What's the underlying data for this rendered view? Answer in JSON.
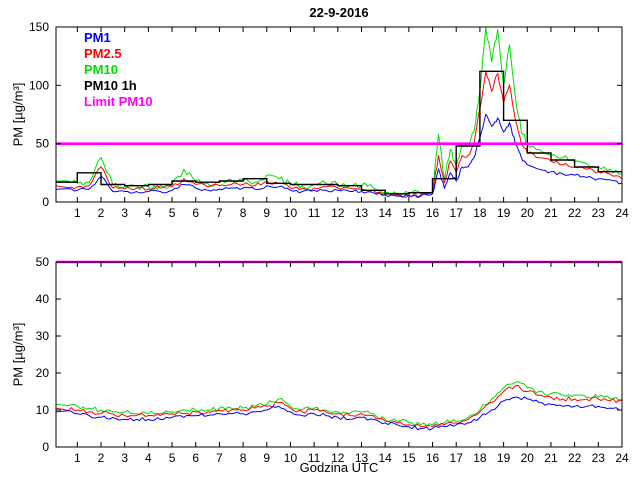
{
  "title": "22-9-2016",
  "xlabel": "Godzina UTC",
  "ylabel": "PM [µg/m³]",
  "legend": [
    {
      "label": "PM1",
      "color": "#0000ff"
    },
    {
      "label": "PM2.5",
      "color": "#ff0000"
    },
    {
      "label": "PM10",
      "color": "#00dd00"
    },
    {
      "label": "PM10 1h",
      "color": "#000000"
    },
    {
      "label": "Limit PM10",
      "color": "#ff00ff"
    }
  ],
  "chart_data": [
    {
      "type": "line",
      "title": "22-9-2016",
      "xlabel": "",
      "ylabel": "PM [µg/m³]",
      "xlim": [
        0.1,
        24
      ],
      "ylim": [
        0,
        150
      ],
      "xticks": [
        1,
        2,
        3,
        4,
        5,
        6,
        7,
        8,
        9,
        10,
        11,
        12,
        13,
        14,
        15,
        16,
        17,
        18,
        19,
        20,
        21,
        22,
        23,
        24
      ],
      "yticks": [
        0,
        50,
        100,
        150
      ],
      "grid": false,
      "legend_position": "top-left",
      "legend_entries": [
        "PM1",
        "PM2.5",
        "PM10",
        "PM10 1h",
        "Limit PM10"
      ],
      "limit_line": {
        "label": "Limit PM10",
        "y": 50,
        "color": "#ff00ff"
      },
      "x": [
        0.5,
        1,
        1.5,
        2,
        2.5,
        3,
        3.5,
        4,
        4.5,
        5,
        5.5,
        6,
        6.5,
        7,
        7.5,
        8,
        8.5,
        9,
        9.5,
        10,
        10.5,
        11,
        11.5,
        12,
        12.5,
        13,
        13.5,
        14,
        14.5,
        15,
        15.5,
        16,
        16.25,
        16.5,
        16.75,
        17,
        17.25,
        17.5,
        17.75,
        18,
        18.25,
        18.5,
        18.75,
        19,
        19.25,
        19.5,
        19.75,
        20,
        20.5,
        21,
        21.5,
        22,
        22.5,
        23,
        23.5,
        24
      ],
      "series": [
        {
          "name": "PM10",
          "color": "#00dd00",
          "noise": 3,
          "values": [
            18,
            16,
            17,
            38,
            15,
            13,
            14,
            13,
            14,
            15,
            28,
            18,
            16,
            17,
            19,
            18,
            17,
            23,
            20,
            15,
            14,
            15,
            16,
            15,
            14,
            14,
            12,
            8,
            7,
            7,
            7,
            9,
            58,
            20,
            45,
            30,
            50,
            48,
            60,
            95,
            150,
            120,
            148,
            100,
            135,
            90,
            60,
            50,
            45,
            40,
            38,
            35,
            33,
            30,
            28,
            24
          ]
        },
        {
          "name": "PM2.5",
          "color": "#ff0000",
          "noise": 2,
          "values": [
            14,
            13,
            14,
            30,
            12,
            11,
            12,
            11,
            12,
            13,
            20,
            15,
            13,
            14,
            15,
            15,
            14,
            18,
            16,
            12,
            12,
            12,
            13,
            12,
            12,
            11,
            10,
            7,
            6,
            6,
            6,
            8,
            40,
            16,
            35,
            25,
            40,
            40,
            50,
            80,
            112,
            95,
            110,
            85,
            100,
            70,
            50,
            42,
            38,
            35,
            32,
            30,
            28,
            26,
            24,
            20
          ]
        },
        {
          "name": "PM1",
          "color": "#0000ff",
          "noise": 1.5,
          "values": [
            11,
            10,
            11,
            22,
            9,
            9,
            9,
            9,
            9,
            10,
            15,
            12,
            10,
            11,
            12,
            12,
            11,
            14,
            13,
            10,
            9,
            10,
            10,
            10,
            9,
            9,
            8,
            6,
            5,
            5,
            5,
            7,
            28,
            12,
            25,
            18,
            30,
            30,
            38,
            55,
            75,
            65,
            72,
            60,
            68,
            50,
            38,
            32,
            28,
            26,
            24,
            23,
            21,
            20,
            19,
            16
          ]
        }
      ],
      "step_series": {
        "name": "PM10 1h",
        "color": "#000000",
        "hours": [
          1,
          2,
          3,
          4,
          5,
          6,
          7,
          8,
          9,
          10,
          11,
          12,
          13,
          14,
          15,
          16,
          17,
          18,
          19,
          20,
          21,
          22,
          23,
          24
        ],
        "values": [
          17,
          25,
          15,
          14,
          15,
          18,
          17,
          18,
          20,
          16,
          15,
          15,
          14,
          10,
          7,
          8,
          20,
          48,
          112,
          70,
          42,
          36,
          30,
          26
        ]
      }
    },
    {
      "type": "line",
      "title": "",
      "xlabel": "Godzina UTC",
      "ylabel": "PM [µg/m³]",
      "xlim": [
        0.1,
        24
      ],
      "ylim": [
        0,
        50
      ],
      "xticks": [
        1,
        2,
        3,
        4,
        5,
        6,
        7,
        8,
        9,
        10,
        11,
        12,
        13,
        14,
        15,
        16,
        17,
        18,
        19,
        20,
        21,
        22,
        23,
        24
      ],
      "yticks": [
        0,
        10,
        20,
        30,
        40,
        50
      ],
      "grid": false,
      "legend_position": "none",
      "limit_line": {
        "label": "Limit PM10",
        "y": 50,
        "color": "#ff00ff"
      },
      "x": [
        0.5,
        1,
        1.5,
        2,
        2.5,
        3,
        3.5,
        4,
        4.5,
        5,
        5.5,
        6,
        6.5,
        7,
        7.5,
        8,
        8.5,
        9,
        9.5,
        10,
        10.5,
        11,
        11.5,
        12,
        12.5,
        13,
        13.5,
        14,
        14.5,
        15,
        15.5,
        16,
        16.5,
        17,
        17.5,
        18,
        18.5,
        19,
        19.5,
        20,
        20.5,
        21,
        21.5,
        22,
        22.5,
        23,
        23.5,
        24
      ],
      "series": [
        {
          "name": "PM10",
          "color": "#00dd00",
          "noise": 0.7,
          "values": [
            11.5,
            11,
            10.5,
            10,
            9.5,
            9.5,
            9,
            9,
            9,
            9.5,
            10,
            10,
            10,
            10.5,
            10.5,
            10.5,
            11,
            11.5,
            13,
            11,
            10,
            10.5,
            10,
            9.5,
            9,
            9.5,
            9,
            7.5,
            7,
            6.5,
            6,
            6,
            6.5,
            7,
            8,
            10,
            13,
            16,
            17.5,
            16,
            15,
            14.5,
            14,
            14,
            13.5,
            13.5,
            13,
            13
          ]
        },
        {
          "name": "PM2.5",
          "color": "#ff0000",
          "noise": 0.6,
          "values": [
            10.5,
            10,
            9.5,
            9,
            9,
            8.5,
            8.5,
            8.5,
            8.5,
            9,
            9,
            9.5,
            9.5,
            10,
            10,
            10,
            10.5,
            11,
            12,
            10.5,
            9.5,
            10,
            9.5,
            9,
            8.5,
            9,
            8.5,
            7,
            6.5,
            6,
            5.5,
            5.5,
            6,
            6.5,
            7.5,
            9.5,
            12,
            15,
            16.5,
            15,
            14,
            13.5,
            13,
            13,
            13,
            13,
            12.5,
            12.5
          ]
        },
        {
          "name": "PM1",
          "color": "#0000ff",
          "noise": 0.5,
          "values": [
            9.5,
            9,
            8.5,
            8,
            8,
            7.5,
            7.5,
            7.5,
            7.5,
            8,
            8,
            8.5,
            8.5,
            9,
            9,
            9,
            9.5,
            10,
            11,
            9.5,
            8.5,
            9,
            8.5,
            8,
            7.5,
            8,
            7.5,
            6.5,
            6,
            5.5,
            5,
            5,
            5.5,
            6,
            6.5,
            8,
            10,
            12.5,
            13.5,
            13,
            12,
            11.5,
            11,
            11,
            11,
            11,
            10.5,
            10
          ]
        }
      ]
    }
  ]
}
